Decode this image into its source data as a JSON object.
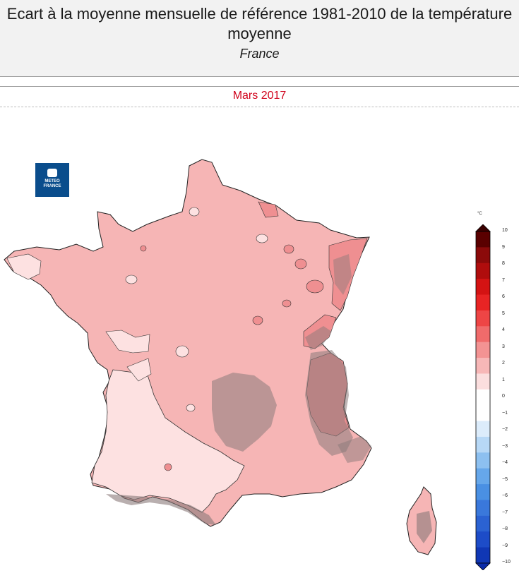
{
  "header": {
    "title": "Ecart à la moyenne mensuelle de référence 1981-2010 de la température moyenne",
    "region": "France"
  },
  "period": "Mars 2017",
  "logo": {
    "text_line1": "METEO",
    "text_line2": "FRANCE"
  },
  "legend": {
    "unit": "°C",
    "ticks": [
      "10",
      "9",
      "8",
      "7",
      "6",
      "5",
      "4",
      "3",
      "2",
      "1",
      "0",
      "−1",
      "−2",
      "−3",
      "−4",
      "−5",
      "−6",
      "−7",
      "−8",
      "−9",
      "−10"
    ],
    "colors": [
      "#5a0000",
      "#8b0a0a",
      "#b00d0d",
      "#d41313",
      "#e82424",
      "#ee4545",
      "#f06b6b",
      "#f39393",
      "#f7b7b7",
      "#fbdede",
      "#ffffff",
      "#ffffff",
      "#dcecfb",
      "#b7d8f6",
      "#8dc0f0",
      "#66a7ea",
      "#4a90e3",
      "#3a78db",
      "#2b62d2",
      "#1d4cc8",
      "#1037b5"
    ]
  },
  "map_colors": {
    "anomaly_1_2": "#fde1e1",
    "anomaly_2_3": "#f6b5b5",
    "anomaly_3_4": "#ef8f91",
    "relief_shading": "#8a7a7a",
    "outline": "#222222"
  }
}
